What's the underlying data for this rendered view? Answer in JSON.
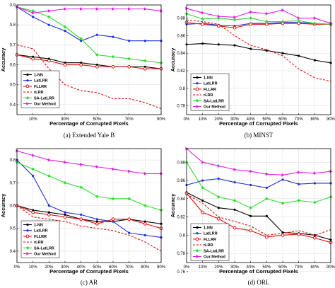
{
  "colors": {
    "1-NN": "#000000",
    "LatLRR": "#1f2fd6",
    "FLLRR": "#e01010",
    "rLRR": "#e01010",
    "SA-LatLRR": "#33dd33",
    "Our Method": "#e020e0"
  },
  "chart_data": [
    {
      "type": "line",
      "caption": "(a) Extended Yale B",
      "xlabel": "Percentage of Corrupted Pixels",
      "ylabel": "Accuracy",
      "xticks": [
        "10%",
        "30%",
        "50%",
        "70%",
        "90%"
      ],
      "xtick_values": [
        10,
        30,
        50,
        70,
        90
      ],
      "yticks": [
        "0.4",
        "0.5",
        "0.6",
        "0.7",
        "0.8",
        "0.9"
      ],
      "ytick_values": [
        0.4,
        0.5,
        0.6,
        0.7,
        0.8,
        0.9
      ],
      "xlim": [
        0,
        90
      ],
      "ylim": [
        0.35,
        0.9
      ],
      "grid": true,
      "legend": "bottom-left",
      "x": [
        0,
        10,
        20,
        30,
        40,
        50,
        60,
        70,
        80,
        90
      ],
      "series": [
        {
          "name": "1-NN",
          "values": [
            0.65,
            0.64,
            0.63,
            0.61,
            0.61,
            0.6,
            0.59,
            0.59,
            0.59,
            0.58
          ]
        },
        {
          "name": "LatLRR",
          "values": [
            0.89,
            0.84,
            0.8,
            0.77,
            0.72,
            0.75,
            0.74,
            0.72,
            0.72,
            0.72
          ]
        },
        {
          "name": "FLLRR",
          "values": [
            0.65,
            0.63,
            0.62,
            0.6,
            0.6,
            0.59,
            0.59,
            0.59,
            0.58,
            0.58
          ]
        },
        {
          "name": "rLRR",
          "values": [
            0.7,
            0.68,
            0.58,
            0.5,
            0.47,
            0.46,
            0.43,
            0.43,
            0.41,
            0.38
          ]
        },
        {
          "name": "SA-LatLRR",
          "values": [
            0.89,
            0.87,
            0.84,
            0.79,
            0.73,
            0.65,
            0.64,
            0.63,
            0.62,
            0.61
          ]
        },
        {
          "name": "Our Method",
          "values": [
            0.89,
            0.86,
            0.87,
            0.88,
            0.88,
            0.88,
            0.88,
            0.88,
            0.88,
            0.87
          ]
        }
      ]
    },
    {
      "type": "line",
      "caption": "(b) MINST",
      "xlabel": "Percentage of Corrupted Pixels",
      "ylabel": "Accuracy",
      "xticks": [
        "0%",
        "10%",
        "20%",
        "30%",
        "40%",
        "50%",
        "60%",
        "70%",
        "80%",
        "90%"
      ],
      "xtick_values": [
        0,
        10,
        20,
        30,
        40,
        50,
        60,
        70,
        80,
        90
      ],
      "yticks": [
        "0.78",
        "0.8",
        "0.82",
        "0.84",
        "0.86",
        "0.88"
      ],
      "ytick_values": [
        0.78,
        0.8,
        0.82,
        0.84,
        0.86,
        0.88
      ],
      "xlim": [
        0,
        90
      ],
      "ylim": [
        0.77,
        0.895
      ],
      "grid": true,
      "legend": "bottom-left",
      "x": [
        0,
        10,
        20,
        30,
        40,
        50,
        60,
        70,
        80,
        90
      ],
      "series": [
        {
          "name": "1-NN",
          "values": [
            0.85,
            0.851,
            0.85,
            0.849,
            0.845,
            0.843,
            0.84,
            0.837,
            0.832,
            0.829
          ]
        },
        {
          "name": "LatLRR",
          "values": [
            0.873,
            0.874,
            0.872,
            0.871,
            0.874,
            0.874,
            0.875,
            0.875,
            0.874,
            0.873
          ]
        },
        {
          "name": "FLLRR",
          "values": [
            0.875,
            0.873,
            0.871,
            0.869,
            0.873,
            0.873,
            0.874,
            0.874,
            0.873,
            0.873
          ]
        },
        {
          "name": "rLRR",
          "values": [
            0.878,
            0.876,
            0.873,
            0.86,
            0.849,
            0.844,
            0.837,
            0.822,
            0.812,
            0.808
          ]
        },
        {
          "name": "SA-LatLRR",
          "values": [
            0.885,
            0.879,
            0.88,
            0.878,
            0.88,
            0.876,
            0.876,
            0.877,
            0.874,
            0.873
          ]
        },
        {
          "name": "Our Method",
          "values": [
            0.891,
            0.886,
            0.882,
            0.881,
            0.887,
            0.885,
            0.889,
            0.88,
            0.88,
            0.874
          ]
        }
      ]
    },
    {
      "type": "line",
      "caption": "(c) AR",
      "xlabel": "Percentage of Corrupted Pixels",
      "ylabel": "Accuracy",
      "xticks": [
        "0%",
        "10%",
        "20%",
        "30%",
        "40%",
        "50%",
        "60%",
        "70%",
        "80%",
        "90%"
      ],
      "xtick_values": [
        0,
        10,
        20,
        30,
        40,
        50,
        60,
        70,
        80,
        90
      ],
      "yticks": [
        "0.4",
        "0.5",
        "0.6",
        "0.7",
        "0.8"
      ],
      "ytick_values": [
        0.4,
        0.5,
        0.6,
        0.7,
        0.8
      ],
      "xlim": [
        0,
        90
      ],
      "ylim": [
        0.35,
        0.85
      ],
      "grid": true,
      "legend": "bottom-left",
      "x": [
        0,
        10,
        20,
        30,
        40,
        50,
        60,
        70,
        80,
        90
      ],
      "series": [
        {
          "name": "1-NN",
          "values": [
            0.6,
            0.58,
            0.57,
            0.56,
            0.54,
            0.53,
            0.53,
            0.54,
            0.53,
            0.52
          ]
        },
        {
          "name": "LatLRR",
          "values": [
            0.8,
            0.73,
            0.6,
            0.57,
            0.56,
            0.54,
            0.53,
            0.48,
            0.47,
            0.46
          ]
        },
        {
          "name": "FLLRR",
          "values": [
            0.6,
            0.57,
            0.56,
            0.55,
            0.54,
            0.52,
            0.54,
            0.54,
            0.52,
            0.5
          ]
        },
        {
          "name": "rLRR",
          "values": [
            0.6,
            0.55,
            0.54,
            0.53,
            0.51,
            0.5,
            0.49,
            0.47,
            0.44,
            0.4
          ]
        },
        {
          "name": "SA-LatLRR",
          "values": [
            0.79,
            0.76,
            0.73,
            0.7,
            0.68,
            0.64,
            0.63,
            0.63,
            0.6,
            0.58
          ]
        },
        {
          "name": "Our Method",
          "values": [
            0.84,
            0.82,
            0.8,
            0.79,
            0.78,
            0.77,
            0.76,
            0.75,
            0.74,
            0.74
          ]
        }
      ]
    },
    {
      "type": "line",
      "caption": "(d) ORL",
      "xlabel": "Percentage of Corrupted Pixels",
      "ylabel": "Accuracy",
      "xticks": [
        "0%",
        "10%",
        "20%",
        "30%",
        "40%",
        "50%",
        "60%",
        "70%",
        "80%",
        "90%"
      ],
      "xtick_values": [
        0,
        10,
        20,
        30,
        40,
        50,
        60,
        70,
        80,
        90
      ],
      "yticks": [
        "0.76",
        "0.78",
        "0.8",
        "0.82",
        "0.84",
        "0.86",
        "0.88"
      ],
      "ytick_values": [
        0.76,
        0.78,
        0.8,
        0.82,
        0.84,
        0.86,
        0.88
      ],
      "xlim": [
        0,
        90
      ],
      "ylim": [
        0.77,
        0.895
      ],
      "grid": true,
      "legend": "bottom-left",
      "x": [
        0,
        10,
        20,
        30,
        40,
        50,
        60,
        70,
        80,
        90
      ],
      "series": [
        {
          "name": "1-NN",
          "values": [
            0.847,
            0.838,
            0.83,
            0.828,
            0.821,
            0.821,
            0.803,
            0.802,
            0.8,
            0.795
          ]
        },
        {
          "name": "LatLRR",
          "values": [
            0.855,
            0.86,
            0.862,
            0.858,
            0.855,
            0.852,
            0.861,
            0.856,
            0.857,
            0.857
          ]
        },
        {
          "name": "FLLRR",
          "values": [
            0.846,
            0.825,
            0.818,
            0.808,
            0.805,
            0.798,
            0.8,
            0.801,
            0.797,
            0.792
          ]
        },
        {
          "name": "rLRR",
          "values": [
            0.845,
            0.835,
            0.82,
            0.815,
            0.81,
            0.8,
            0.802,
            0.805,
            0.8,
            0.806
          ]
        },
        {
          "name": "SA-LatLRR",
          "values": [
            0.88,
            0.852,
            0.842,
            0.838,
            0.83,
            0.84,
            0.835,
            0.838,
            0.836,
            0.842
          ]
        },
        {
          "name": "Our Method",
          "values": [
            0.895,
            0.88,
            0.876,
            0.872,
            0.87,
            0.867,
            0.866,
            0.869,
            0.868,
            0.87
          ]
        }
      ]
    }
  ]
}
